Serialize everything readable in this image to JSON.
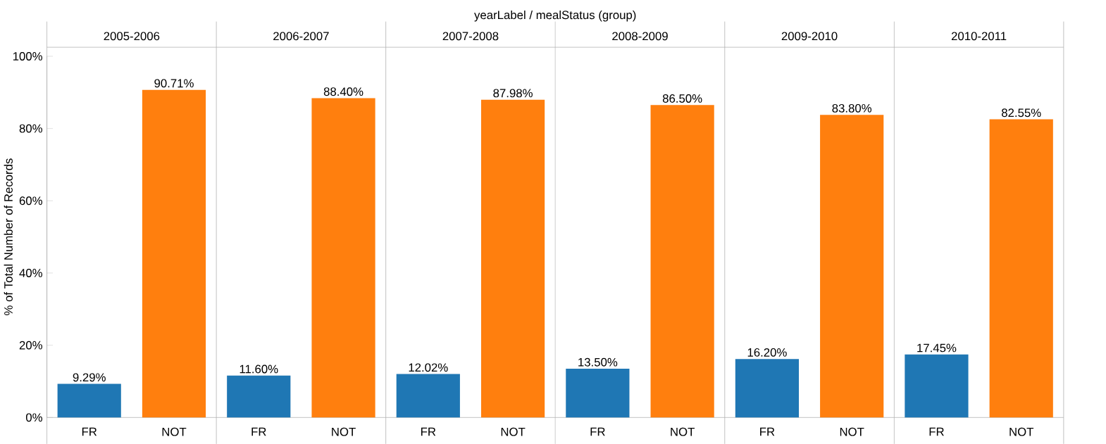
{
  "chart_data": {
    "type": "bar",
    "title": "yearLabel  /  mealStatus (group)",
    "ylabel": "% of Total Number of Records",
    "categories": [
      "FR",
      "NOT",
      "FR",
      "NOT",
      "FR",
      "NOT",
      "FR",
      "NOT",
      "FR",
      "NOT",
      "FR",
      "NOT"
    ],
    "values": [
      9.29,
      90.71,
      11.6,
      88.4,
      12.02,
      87.98,
      13.5,
      86.5,
      16.2,
      83.8,
      17.45,
      82.55
    ],
    "value_labels": [
      "9.29%",
      "90.71%",
      "11.60%",
      "88.40%",
      "12.02%",
      "87.98%",
      "13.50%",
      "86.50%",
      "16.20%",
      "83.80%",
      "17.45%",
      "82.55%"
    ],
    "colors": [
      "#1f77b4",
      "#ff7f0e",
      "#1f77b4",
      "#ff7f0e",
      "#1f77b4",
      "#ff7f0e",
      "#1f77b4",
      "#ff7f0e",
      "#1f77b4",
      "#ff7f0e",
      "#1f77b4",
      "#ff7f0e"
    ],
    "annotations": [
      "2005-2006",
      "2006-2007",
      "2007-2008",
      "2008-2009",
      "2009-2010",
      "2010-2011"
    ],
    "ylim": [
      0,
      100
    ],
    "yticks": [
      {
        "value": 0,
        "label": "0%"
      },
      {
        "value": 20,
        "label": "20%"
      },
      {
        "value": 40,
        "label": "40%"
      },
      {
        "value": 60,
        "label": "60%"
      },
      {
        "value": 80,
        "label": "80%"
      },
      {
        "value": 100,
        "label": "100%"
      }
    ],
    "grid": false
  }
}
